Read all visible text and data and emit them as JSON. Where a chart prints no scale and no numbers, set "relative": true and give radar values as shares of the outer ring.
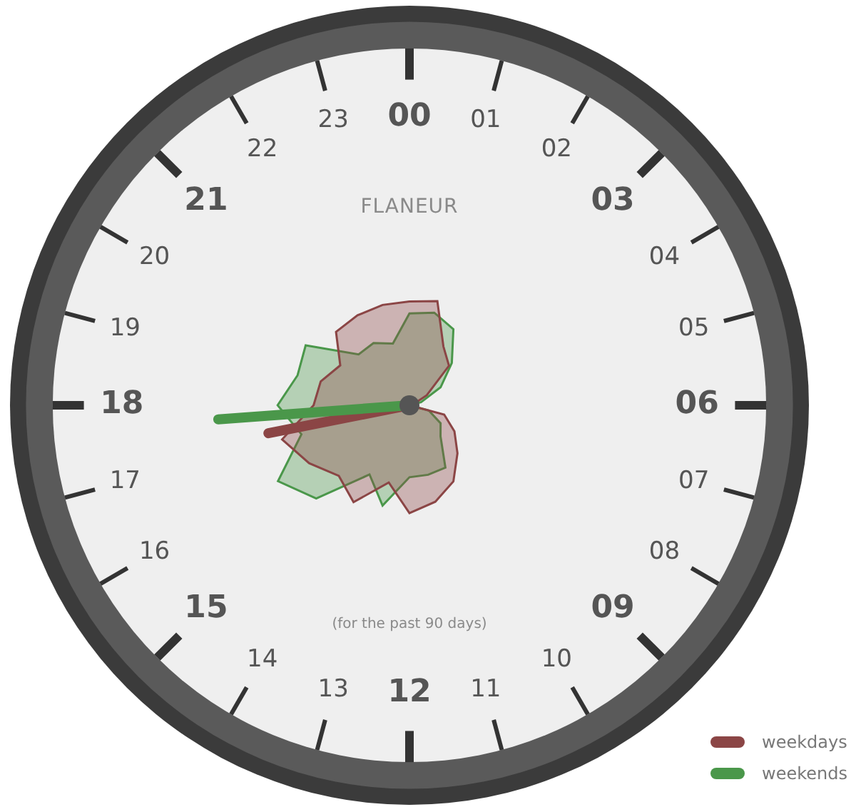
{
  "chart_data": {
    "type": "radar",
    "title": "FLANEUR",
    "subtitle": "(for the past 90 days)",
    "relative": true,
    "legend": "bottom right",
    "categories": [
      "00",
      "01",
      "02",
      "03",
      "04",
      "05",
      "06",
      "07",
      "08",
      "09",
      "10",
      "11",
      "12",
      "13",
      "14",
      "15",
      "16",
      "17",
      "18",
      "19",
      "20",
      "21",
      "22",
      "23"
    ],
    "series": [
      {
        "name": "weekdays",
        "color": "#8b4545",
        "values": [
          0.26,
          0.27,
          0.17,
          0.14,
          0.05,
          0.01,
          0,
          0.09,
          0.13,
          0.17,
          0.22,
          0.25,
          0.27,
          0.2,
          0.28,
          0.25,
          0.29,
          0.33,
          0.24,
          0.23,
          0.2,
          0.26,
          0.26,
          0.26
        ]
      },
      {
        "name": "weekends",
        "color": "#4a974a",
        "values": [
          0.23,
          0.24,
          0.22,
          0.15,
          0.09,
          0.03,
          0,
          0.05,
          0.09,
          0.11,
          0.18,
          0.18,
          0.18,
          0.26,
          0.2,
          0.33,
          0.38,
          0.28,
          0.33,
          0.29,
          0.3,
          0.18,
          0.18,
          0.16
        ]
      }
    ]
  }
}
